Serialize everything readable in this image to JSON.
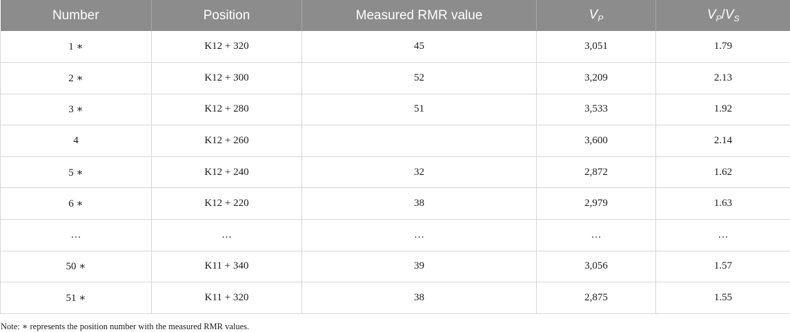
{
  "table": {
    "headers": {
      "number": "Number",
      "position": "Position",
      "rmr": "Measured RMR value",
      "vp_v": "V",
      "vp_sub": "P",
      "ratio_v1": "V",
      "ratio_sub1": "P",
      "ratio_slash": "/",
      "ratio_v2": "V",
      "ratio_sub2": "S"
    },
    "rows": [
      {
        "number": "1 ∗",
        "position": "K12 + 320",
        "rmr": "45",
        "vp": "3,051",
        "ratio": "1.79"
      },
      {
        "number": "2 ∗",
        "position": "K12 + 300",
        "rmr": "52",
        "vp": "3,209",
        "ratio": "2.13"
      },
      {
        "number": "3 ∗",
        "position": "K12 + 280",
        "rmr": "51",
        "vp": "3,533",
        "ratio": "1.92"
      },
      {
        "number": "4",
        "position": "K12 + 260",
        "rmr": "",
        "vp": "3,600",
        "ratio": "2.14"
      },
      {
        "number": "5 ∗",
        "position": "K12 + 240",
        "rmr": "32",
        "vp": "2,872",
        "ratio": "1.62"
      },
      {
        "number": "6 ∗",
        "position": "K12 + 220",
        "rmr": "38",
        "vp": "2,979",
        "ratio": "1.63"
      },
      {
        "number": "…",
        "position": "…",
        "rmr": "…",
        "vp": "…",
        "ratio": "…"
      },
      {
        "number": "50 ∗",
        "position": "K11 + 340",
        "rmr": "39",
        "vp": "3,056",
        "ratio": "1.57"
      },
      {
        "number": "51 ∗",
        "position": "K11 + 320",
        "rmr": "38",
        "vp": "2,875",
        "ratio": "1.55"
      }
    ]
  },
  "note": "Note: ∗ represents the position number with the measured RMR values."
}
